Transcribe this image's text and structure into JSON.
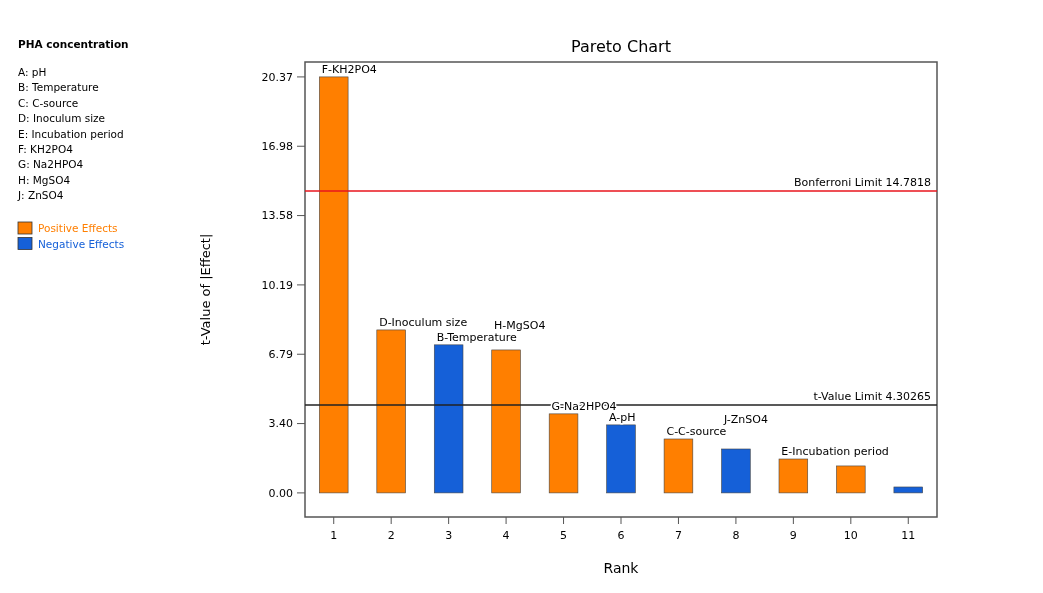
{
  "chart_data": {
    "type": "bar",
    "title": "Pareto Chart",
    "legend_title": "PHA concentration",
    "xlabel": "Rank",
    "ylabel": "t-Value of |Effect|",
    "categories": [
      "1",
      "2",
      "3",
      "4",
      "5",
      "6",
      "7",
      "8",
      "9",
      "10",
      "11"
    ],
    "series": [
      {
        "name": "Positive Effects",
        "color": "#ff7f00",
        "values": [
          20.37,
          7.98,
          null,
          7.0,
          3.87,
          null,
          2.64,
          null,
          1.66,
          1.32,
          null
        ]
      },
      {
        "name": "Negative Effects",
        "color": "#1560d8",
        "values": [
          null,
          null,
          7.25,
          null,
          null,
          3.33,
          null,
          2.15,
          null,
          null,
          0.29
        ]
      }
    ],
    "ylim": [
      -1.18,
      21.1
    ],
    "yticks": [
      {
        "value": 0,
        "label": "0.00"
      },
      {
        "value": 3.395,
        "label": "3.40"
      },
      {
        "value": 6.79,
        "label": "6.79"
      },
      {
        "value": 10.185,
        "label": "10.19"
      },
      {
        "value": 13.58,
        "label": "13.58"
      },
      {
        "value": 16.975,
        "label": "16.98"
      },
      {
        "value": 20.37,
        "label": "20.37"
      }
    ],
    "ref_lines": [
      {
        "axis": "y",
        "value": 14.7818,
        "label": "Bonferroni Limit 14.7818",
        "color": "#e8141c"
      },
      {
        "axis": "y",
        "value": 4.30265,
        "label": "t-Value Limit 4.30265",
        "color": "#222222"
      }
    ],
    "legend": "left",
    "grid": false,
    "annotations": [
      {
        "text": "F-KH2PO4",
        "x": "1",
        "y": 20.37
      },
      {
        "text": "D-Inoculum size",
        "x": "2",
        "y": 7.98
      },
      {
        "text": "B-Temperature",
        "x": "3",
        "y": 7.25
      },
      {
        "text": "H-MgSO4",
        "x": "4",
        "y": 7.0
      },
      {
        "text": "G-Na2HPO4",
        "x": "5",
        "y": 3.87
      },
      {
        "text": "A-pH",
        "x": "6",
        "y": 3.33
      },
      {
        "text": "C-C-source",
        "x": "7",
        "y": 2.64
      },
      {
        "text": "J-ZnSO4",
        "x": "8",
        "y": 2.15
      },
      {
        "text": "E-Incubation period",
        "x": "9",
        "y": 1.66
      },
      "A: pH",
      "B: Temperature",
      "C: C-source",
      "D: Inoculum size",
      "E: Incubation period",
      "F: KH2PO4",
      "G: Na2HPO4",
      "H: MgSO4",
      "J: ZnSO4"
    ]
  }
}
